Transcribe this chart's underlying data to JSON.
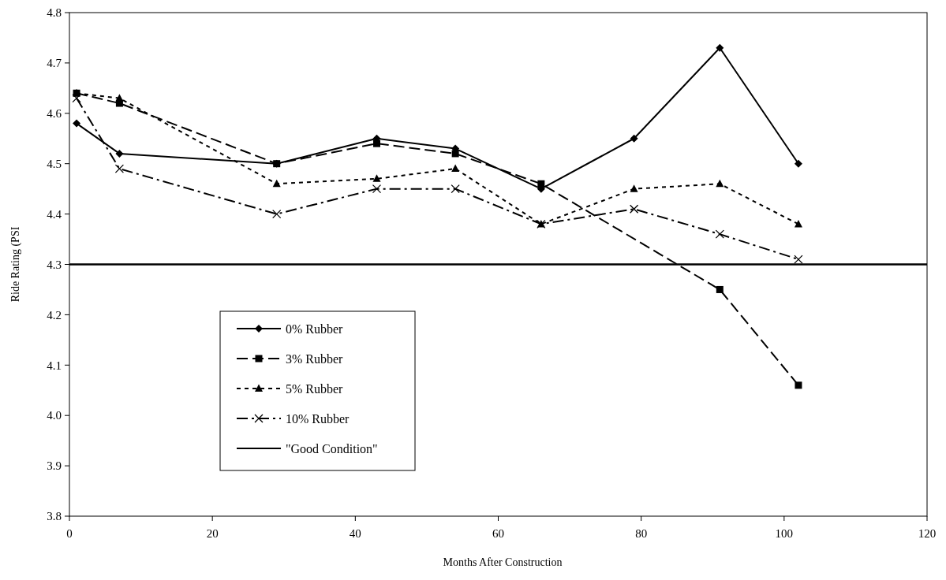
{
  "chart_data": {
    "type": "line",
    "xlabel": "Months After Construction",
    "ylabel": "Ride Rating (PSI",
    "x": [
      1,
      7,
      29,
      43,
      54,
      66,
      79,
      91,
      102
    ],
    "series": [
      {
        "name": "0% Rubber",
        "color": "#000000",
        "marker": "diamond",
        "line_style": "solid",
        "values": [
          4.58,
          4.52,
          4.5,
          4.55,
          4.53,
          4.45,
          4.55,
          4.73,
          4.5
        ]
      },
      {
        "name": "3% Rubber",
        "color": "#000000",
        "marker": "square",
        "line_style": "dashed",
        "x": [
          1,
          7,
          29,
          43,
          54,
          66,
          91,
          102
        ],
        "values": [
          4.64,
          4.62,
          4.5,
          4.54,
          4.52,
          4.46,
          4.25,
          4.06
        ]
      },
      {
        "name": "5% Rubber",
        "color": "#000000",
        "marker": "triangle",
        "line_style": "dotted",
        "values": [
          4.64,
          4.63,
          4.46,
          4.47,
          4.49,
          4.38,
          4.45,
          4.46,
          4.38
        ]
      },
      {
        "name": "10% Rubber",
        "color": "#000000",
        "marker": "cross",
        "line_style": "dashdot",
        "values": [
          4.63,
          4.49,
          4.4,
          4.45,
          4.45,
          4.38,
          4.41,
          4.36,
          4.31
        ]
      }
    ],
    "ref_lines": [
      {
        "axis": "y",
        "value": 4.3,
        "label": "\"Good Condition\"",
        "color": "#000000",
        "line_style": "solid"
      }
    ],
    "xlim": [
      0,
      120
    ],
    "xticks": [
      0,
      20,
      40,
      60,
      80,
      100,
      120
    ],
    "ylim": [
      3.8,
      4.8
    ],
    "yticks": [
      3.8,
      3.9,
      {
        "value": 4,
        "label": "4.0"
      },
      4.1,
      4.2,
      4.3,
      4.4,
      4.5,
      4.6,
      4.7,
      4.8
    ],
    "legend": "bottom left",
    "grid": false
  }
}
